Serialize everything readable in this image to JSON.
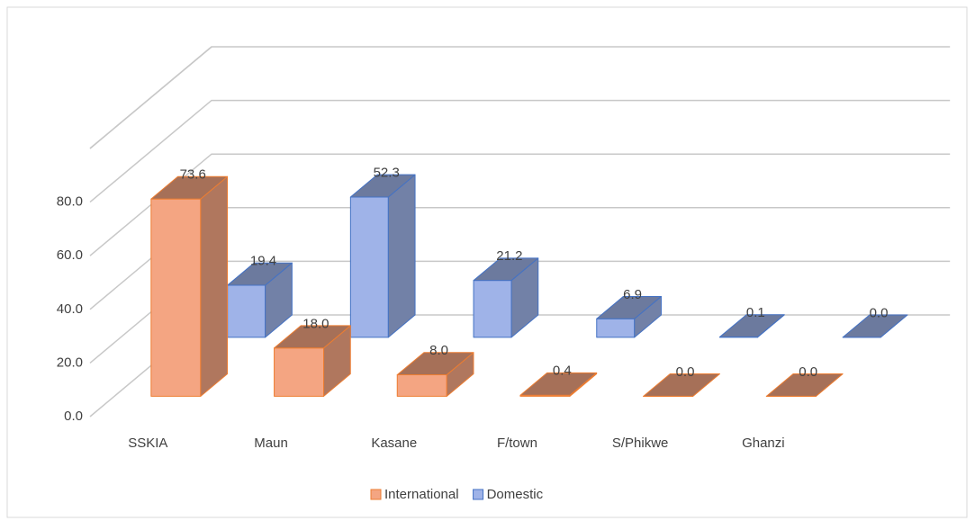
{
  "chart_data": {
    "type": "bar3d",
    "categories": [
      "SSKIA",
      "Maun",
      "Kasane",
      "F/town",
      "S/Phikwe",
      "Ghanzi"
    ],
    "series": [
      {
        "name": "International",
        "color": "#f4a582",
        "edge": "#ed7d31",
        "values": [
          73.6,
          18.0,
          8.0,
          0.4,
          0.0,
          0.0
        ],
        "value_labels": [
          "73.6",
          "18.0",
          "8.0",
          "0.4",
          "0.0",
          "0.0"
        ]
      },
      {
        "name": "Domestic",
        "color": "#9fb3e8",
        "edge": "#4472c4",
        "values": [
          19.4,
          52.3,
          21.2,
          6.9,
          0.1,
          0.0
        ],
        "value_labels": [
          "19.4",
          "52.3",
          "21.2",
          "6.9",
          "0.1",
          "0.0"
        ]
      }
    ],
    "ylim": [
      0,
      100
    ],
    "yticks": [
      {
        "value": 0,
        "label": "0.0"
      },
      {
        "value": 20,
        "label": "20.0"
      },
      {
        "value": 40,
        "label": "40.0"
      },
      {
        "value": 60,
        "label": "60.0"
      },
      {
        "value": 80,
        "label": "80.0"
      }
    ],
    "grid": true,
    "legend": "bottom"
  }
}
